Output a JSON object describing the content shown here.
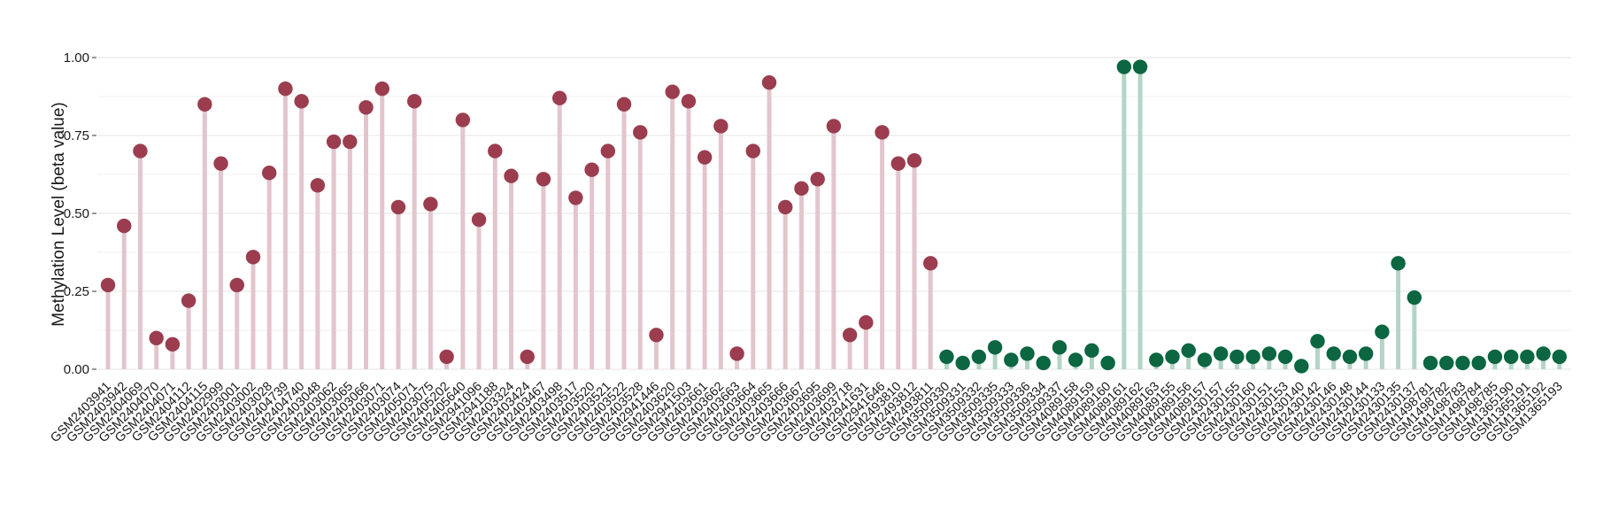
{
  "chart_data": {
    "type": "lollipop",
    "title": "",
    "xlabel": "",
    "ylabel": "Methylation Level (beta value)",
    "ylim": [
      0,
      1
    ],
    "yticks": [
      "0.00",
      "0.25",
      "0.50",
      "0.75",
      "1.00"
    ],
    "grid": true,
    "legend": "none",
    "colors": {
      "group1_point": "#9B3D4F",
      "group1_stem": "#E3C5CD",
      "group2_point": "#0B6641",
      "group2_stem": "#B3D5C7",
      "grid": "#EBEBEB"
    },
    "categories": [
      "GSM2403941",
      "GSM2403942",
      "GSM2404069",
      "GSM2404070",
      "GSM2404071",
      "GSM2404112",
      "GSM2404115",
      "GSM2402999",
      "GSM2403001",
      "GSM2403002",
      "GSM2403028",
      "GSM2404739",
      "GSM2404740",
      "GSM2403048",
      "GSM2403062",
      "GSM2403065",
      "GSM2403066",
      "GSM2403071",
      "GSM2403074",
      "GSM2405071",
      "GSM2403075",
      "GSM2405202",
      "GSM2405640",
      "GSM2941096",
      "GSM2941188",
      "GSM2403324",
      "GSM2403424",
      "GSM2403467",
      "GSM2403498",
      "GSM2403517",
      "GSM2403520",
      "GSM2403521",
      "GSM2403522",
      "GSM2403528",
      "GSM2941446",
      "GSM2403620",
      "GSM2941503",
      "GSM2403661",
      "GSM2403662",
      "GSM2403663",
      "GSM2403664",
      "GSM2403665",
      "GSM2403666",
      "GSM2403667",
      "GSM2403695",
      "GSM2403699",
      "GSM2403718",
      "GSM2941631",
      "GSM2941646",
      "GSM2493810",
      "GSM2493812",
      "GSM2493811",
      "GSM3509330",
      "GSM3509331",
      "GSM3509332",
      "GSM3509335",
      "GSM3509333",
      "GSM3509336",
      "GSM3509334",
      "GSM3509337",
      "GSM4089158",
      "GSM4089159",
      "GSM4089160",
      "GSM4089161",
      "GSM4089162",
      "GSM4089163",
      "GSM4089155",
      "GSM4089156",
      "GSM4089157",
      "GSM2430157",
      "GSM2430155",
      "GSM2430160",
      "GSM2430151",
      "GSM2430153",
      "GSM2430140",
      "GSM2430142",
      "GSM2430146",
      "GSM2430148",
      "GSM2430144",
      "GSM2430133",
      "GSM2430135",
      "GSM2430137",
      "GSM1498781",
      "GSM1498782",
      "GSM1498783",
      "GSM1498784",
      "GSM1498785",
      "GSM1365190",
      "GSM1365191",
      "GSM1365192",
      "GSM1365193"
    ],
    "values": [
      0.27,
      0.46,
      0.7,
      0.1,
      0.08,
      0.22,
      0.85,
      0.66,
      0.27,
      0.36,
      0.63,
      0.9,
      0.86,
      0.59,
      0.73,
      0.73,
      0.84,
      0.9,
      0.52,
      0.86,
      0.53,
      0.04,
      0.8,
      0.48,
      0.7,
      0.62,
      0.04,
      0.61,
      0.87,
      0.55,
      0.64,
      0.7,
      0.85,
      0.76,
      0.11,
      0.89,
      0.86,
      0.68,
      0.78,
      0.05,
      0.7,
      0.92,
      0.52,
      0.58,
      0.61,
      0.78,
      0.11,
      0.15,
      0.76,
      0.66,
      0.67,
      0.34,
      0.04,
      0.02,
      0.04,
      0.07,
      0.03,
      0.05,
      0.02,
      0.07,
      0.03,
      0.06,
      0.02,
      0.97,
      0.97,
      0.03,
      0.04,
      0.06,
      0.03,
      0.05,
      0.04,
      0.04,
      0.05,
      0.04,
      0.01,
      0.09,
      0.05,
      0.04,
      0.05,
      0.12,
      0.34,
      0.23,
      0.02,
      0.02,
      0.02,
      0.02,
      0.04,
      0.04,
      0.04,
      0.05,
      0.04
    ],
    "groups": [
      1,
      1,
      1,
      1,
      1,
      1,
      1,
      1,
      1,
      1,
      1,
      1,
      1,
      1,
      1,
      1,
      1,
      1,
      1,
      1,
      1,
      1,
      1,
      1,
      1,
      1,
      1,
      1,
      1,
      1,
      1,
      1,
      1,
      1,
      1,
      1,
      1,
      1,
      1,
      1,
      1,
      1,
      1,
      1,
      1,
      1,
      1,
      1,
      1,
      1,
      1,
      1,
      2,
      2,
      2,
      2,
      2,
      2,
      2,
      2,
      2,
      2,
      2,
      2,
      2,
      2,
      2,
      2,
      2,
      2,
      2,
      2,
      2,
      2,
      2,
      2,
      2,
      2,
      2,
      2,
      2,
      2,
      2,
      2,
      2,
      2,
      2,
      2,
      2,
      2,
      2
    ]
  }
}
